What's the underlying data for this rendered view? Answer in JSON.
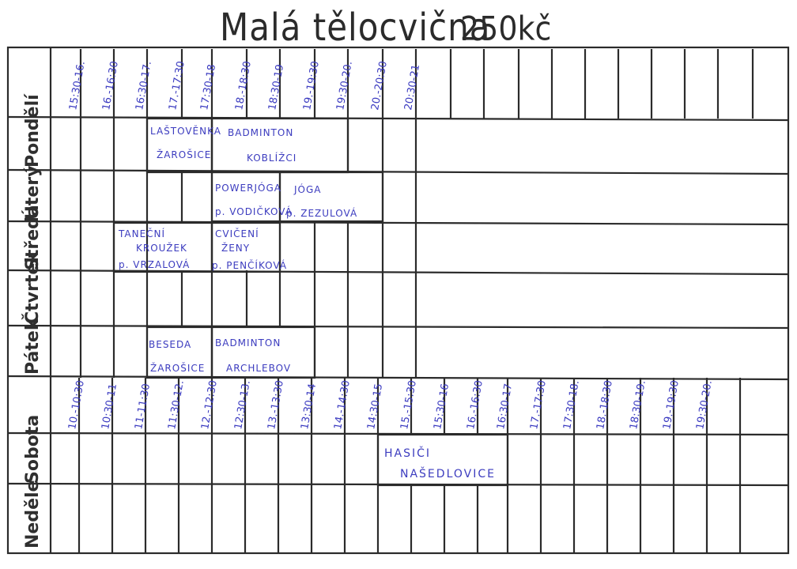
{
  "title": {
    "name": "Malá tělocvična",
    "price": "250kč"
  },
  "weekday_times": [
    "15:30-16.",
    "16.-16:30",
    "16:30-17.",
    "17.-17:30",
    "17:30-18",
    "18.-18:30",
    "18:30-19",
    "19.-19:30",
    "19:30-20.",
    "20.-20:30",
    "20:30-21"
  ],
  "weekend_times": [
    "10.-10:30",
    "10:30-11",
    "11-11:30",
    "11:30-12.",
    "12.-12:30",
    "12:30-13.",
    "13.-13:30",
    "13:30-14",
    "14.-14:30",
    "14:30-15",
    "15.-15:30",
    "15:30-16",
    "16.-16:30",
    "16:30-17",
    "17.-17:30",
    "17:30-18.",
    "18.-18:30",
    "18:30-19.",
    "19.-19:30",
    "19:30-20."
  ],
  "days": {
    "mon": "Pondělí",
    "tue": "Úterý",
    "wed": "Středa",
    "thu": "Čtvrtek",
    "fri": "Pátek",
    "sat": "Sobota",
    "sun": "Neděle"
  },
  "events": {
    "mon_1": {
      "line1": "LAŠTOVĚNKA",
      "line2": "ŽAROŠICE"
    },
    "mon_2": {
      "line1": "BADMINTON",
      "line2": "KOBLÍŽCI"
    },
    "tue_1": {
      "line1": "POWERJÓGA",
      "line2": "p. VODIČKOVÁ"
    },
    "tue_2": {
      "line1": "JÓGA",
      "line2": "p. ZEZULOVÁ"
    },
    "wed_1": {
      "line1": "TANEČNÍ",
      "line2": "KROUŽEK",
      "line3": "p. VRZALOVÁ"
    },
    "wed_2": {
      "line1": "CVIČENÍ",
      "line2": "ŽENY",
      "line3": "p. PENČÍKOVÁ"
    },
    "fri_1": {
      "line1": "BESEDA",
      "line2": "ŽAROŠICE"
    },
    "fri_2": {
      "line1": "BADMINTON",
      "line2": "ARCHLEBOV"
    },
    "sat_1": {
      "line1": "HASIČI",
      "line2": "NAŠEDLOVICE"
    }
  },
  "colors": {
    "ink": "#2b2b2b",
    "pen_blue": "#3c3cbf"
  }
}
